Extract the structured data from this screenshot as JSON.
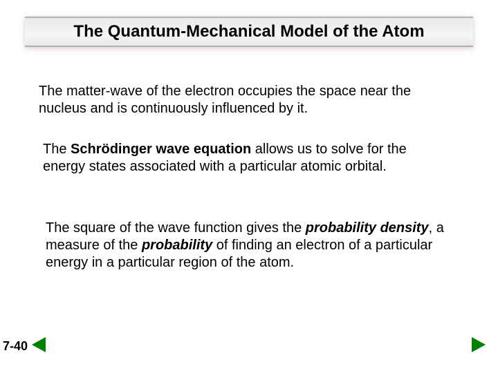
{
  "title": "The Quantum-Mechanical Model of the Atom",
  "paragraphs": {
    "p1": "The matter-wave of the electron occupies the space near the nucleus and is continuously influenced by it.",
    "p2_pre": "The ",
    "p2_bold": "Schrödinger wave equation",
    "p2_post": " allows us to solve for the energy states associated with a particular atomic orbital.",
    "p3_pre": "The square of the wave function gives the ",
    "p3_bi1": "probability density",
    "p3_mid1": ", a measure of the ",
    "p3_bi2": "probability",
    "p3_post": " of finding an electron of a particular energy in a particular region of the atom."
  },
  "page_number": "7-40",
  "colors": {
    "arrow": "#008000",
    "title_bar_border": "#b0b0b0",
    "text": "#000000",
    "background": "#ffffff"
  }
}
